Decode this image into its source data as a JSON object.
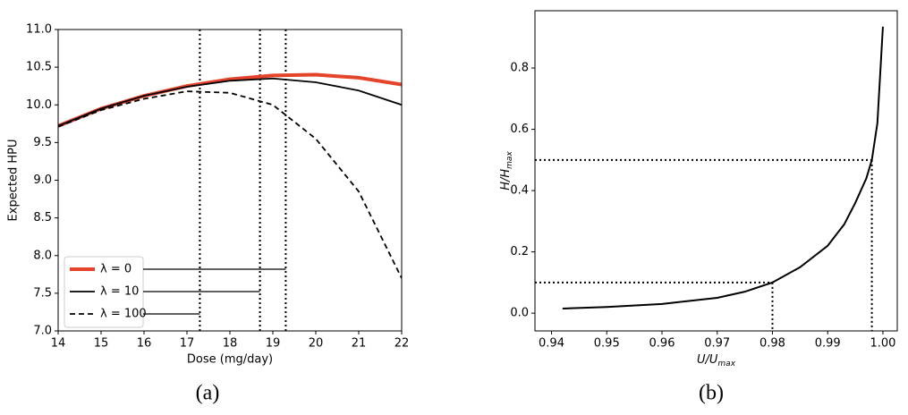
{
  "chart_data": [
    {
      "type": "line",
      "caption": "(a)",
      "xlabel": "Dose (mg/day)",
      "ylabel": "Expected HPU",
      "x": [
        14,
        15,
        16,
        17,
        18,
        19,
        20,
        21,
        22
      ],
      "series": [
        {
          "name": "λ = 0",
          "color": "#e5432a",
          "width": 4,
          "dash": "",
          "values": [
            9.72,
            9.95,
            10.12,
            10.25,
            10.34,
            10.39,
            10.4,
            10.36,
            10.27
          ]
        },
        {
          "name": "λ = 10",
          "color": "#000000",
          "width": 1.8,
          "dash": "",
          "values": [
            9.72,
            9.95,
            10.12,
            10.24,
            10.32,
            10.35,
            10.3,
            10.19,
            10.0
          ]
        },
        {
          "name": "λ = 100",
          "color": "#000000",
          "width": 1.8,
          "dash": "6 4",
          "values": [
            9.71,
            9.93,
            10.08,
            10.18,
            10.16,
            10.0,
            9.55,
            8.85,
            7.7
          ]
        }
      ],
      "vlines": [
        19.3,
        18.7,
        17.3
      ],
      "xlim": [
        14,
        22
      ],
      "ylim": [
        7,
        11
      ],
      "xticks": [
        14,
        15,
        16,
        17,
        18,
        19,
        20,
        21,
        22
      ],
      "yticks": [
        {
          "value": 7,
          "label": "7.0"
        },
        7.5,
        {
          "value": 8,
          "label": "8.0"
        },
        8.5,
        {
          "value": 9,
          "label": "9.0"
        },
        9.5,
        {
          "value": 10,
          "label": "10.0"
        },
        10.5,
        {
          "value": 11,
          "label": "11.0"
        }
      ],
      "legend": "lower left"
    },
    {
      "type": "line",
      "caption": "(b)",
      "xlabel": [
        "U/U",
        "max"
      ],
      "ylabel": [
        "H/H",
        "max"
      ],
      "x": [
        0.942,
        0.95,
        0.96,
        0.97,
        0.975,
        0.98,
        0.985,
        0.99,
        0.993,
        0.995,
        0.997,
        0.998,
        0.999,
        1.0
      ],
      "series": [
        {
          "color": "#000000",
          "width": 2,
          "dash": "",
          "values": [
            0.015,
            0.02,
            0.03,
            0.05,
            0.07,
            0.1,
            0.15,
            0.22,
            0.29,
            0.36,
            0.44,
            0.5,
            0.62,
            0.935
          ]
        }
      ],
      "guides": [
        {
          "x": 0.998,
          "y": 0.5
        },
        {
          "x": 0.98,
          "y": 0.1
        }
      ],
      "xlim": [
        0.937,
        1.0026
      ],
      "ylim": [
        -0.058,
        0.987
      ],
      "xticks": [
        0.94,
        0.95,
        0.96,
        0.97,
        0.98,
        0.99,
        {
          "value": 1,
          "label": "1.00"
        }
      ],
      "yticks": [
        {
          "value": 0,
          "label": "0.0"
        },
        0.2,
        0.4,
        0.6,
        0.8
      ]
    }
  ]
}
